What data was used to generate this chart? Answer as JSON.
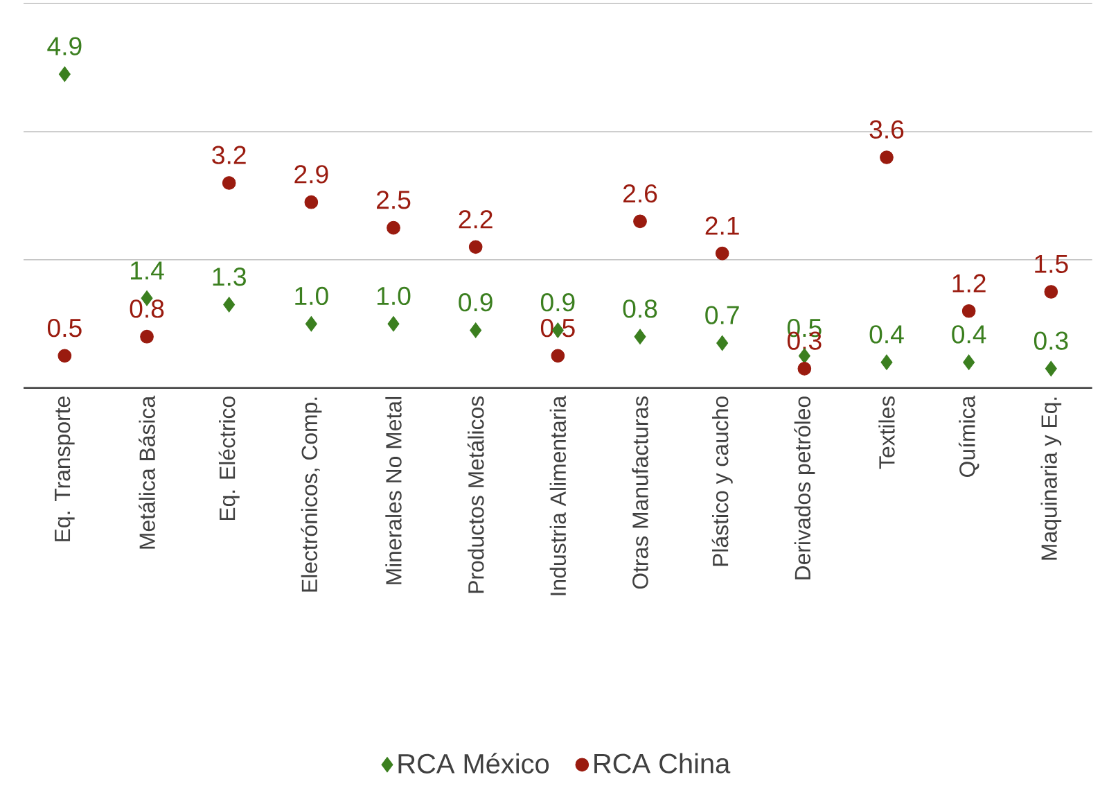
{
  "chart_data": {
    "type": "scatter",
    "categories": [
      "Eq. Transporte",
      "Metálica Básica",
      "Eq. Eléctrico",
      "Electrónicos, Comp.",
      "Minerales No Metal",
      "Productos Metálicos",
      "Industria Alimentaria",
      "Otras Manufacturas",
      "Plástico y caucho",
      "Derivados petróleo",
      "Textiles",
      "Química",
      "Maquinaria y Eq."
    ],
    "series": [
      {
        "name": "RCA México",
        "color": "#3b7f1f",
        "marker": "diamond",
        "values": [
          4.9,
          1.4,
          1.3,
          1.0,
          1.0,
          0.9,
          0.9,
          0.8,
          0.7,
          0.5,
          0.4,
          0.4,
          0.3
        ],
        "value_labels": [
          "4.9",
          "1.4",
          "1.3",
          "1.0",
          "1.0",
          "0.9",
          "0.9",
          "0.8",
          "0.7",
          "0.5",
          "0.4",
          "0.4",
          "0.3"
        ]
      },
      {
        "name": "RCA China",
        "color": "#9a1b0f",
        "marker": "circle",
        "values": [
          0.5,
          0.8,
          3.2,
          2.9,
          2.5,
          2.2,
          0.5,
          2.6,
          2.1,
          0.3,
          3.6,
          1.2,
          1.5
        ],
        "value_labels": [
          "0.5",
          "0.8",
          "3.2",
          "2.9",
          "2.5",
          "2.2",
          "0.5",
          "2.6",
          "2.1",
          "0.3",
          "3.6",
          "1.2",
          "1.5"
        ]
      }
    ],
    "ylim": [
      0,
      6
    ],
    "yticks": [
      {
        "value": 0,
        "label": null
      },
      {
        "value": 2,
        "label": null
      },
      {
        "value": 4,
        "label": null
      },
      {
        "value": 6,
        "label": null
      }
    ],
    "grid": "y",
    "tick_labels": "x",
    "legend": "bottom"
  }
}
